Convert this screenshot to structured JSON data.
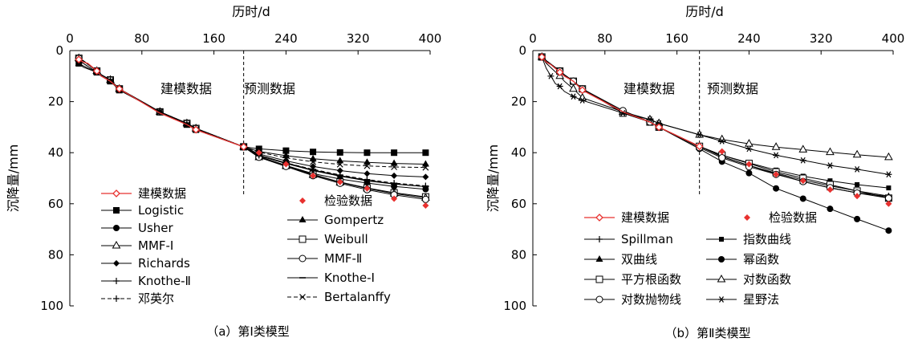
{
  "chart_data": [
    {
      "type": "line",
      "caption": "（a）第Ⅰ类模型",
      "xlabel": "历时/d",
      "ylabel": "沉降量/mm",
      "xticks": [
        0,
        80,
        160,
        240,
        320,
        400
      ],
      "yticks": [
        0,
        20,
        40,
        60,
        80,
        100
      ],
      "xlim": [
        0,
        400
      ],
      "ylim": [
        0,
        100
      ],
      "y_inverted": true,
      "x_axis_position": "top",
      "split_x": 193,
      "region_labels": [
        "建模数据",
        "预测数据"
      ],
      "colors": {
        "model": "#e8312f",
        "check": "#e8312f",
        "line": "#000000"
      },
      "model_series": {
        "name": "建模数据",
        "x": [
          10,
          15,
          20,
          30,
          35,
          45,
          55,
          100,
          130,
          140,
          193
        ],
        "y": [
          3.5,
          4.5,
          5,
          8,
          10,
          12,
          15,
          24.5,
          29,
          31,
          37.7
        ]
      },
      "check_series": {
        "name": "检验数据",
        "x": [
          210,
          240,
          270,
          300,
          330,
          360,
          395
        ],
        "y": [
          40,
          44.5,
          49,
          51.5,
          54,
          58,
          60.7
        ]
      },
      "legend": [
        "建模数据",
        "检验数据",
        "Logistic",
        "Gompertz",
        "Usher",
        "Weibull",
        "MMF-Ⅰ",
        "MMF-Ⅱ",
        "Richards",
        "Knothe-Ⅰ",
        "Knothe-Ⅱ",
        "Bertalanffy",
        "邓英尔"
      ],
      "series": [
        {
          "name": "Logistic",
          "marker": "square-filled",
          "dash": "solid",
          "x": [
            10,
            15,
            30,
            35,
            45,
            55,
            100,
            130,
            140,
            193,
            210,
            240,
            270,
            300,
            330,
            360,
            395
          ],
          "y": [
            5,
            6.5,
            8.5,
            10,
            12,
            15.5,
            24,
            29,
            31,
            37.7,
            38.5,
            39.2,
            39.7,
            39.9,
            40,
            40,
            40
          ]
        },
        {
          "name": "Gompertz",
          "marker": "triangle-filled",
          "dash": "solid",
          "x": [
            10,
            15,
            30,
            35,
            45,
            55,
            100,
            130,
            140,
            193,
            210,
            240,
            270,
            300,
            330,
            360,
            395
          ],
          "y": [
            5,
            6,
            8.5,
            10,
            12,
            15,
            24,
            29,
            31,
            37.7,
            39.5,
            41.2,
            42.4,
            43.2,
            43.8,
            44.2,
            44.5
          ]
        },
        {
          "name": "Usher",
          "marker": "circle-filled",
          "dash": "solid",
          "x": [
            10,
            15,
            30,
            35,
            45,
            55,
            100,
            130,
            140,
            193,
            210,
            240,
            270,
            300,
            330,
            360,
            395
          ],
          "y": [
            3,
            4,
            8,
            9.5,
            11.5,
            15,
            24,
            28.5,
            30.5,
            37.7,
            41.5,
            45,
            48.2,
            50.3,
            51.9,
            53.2,
            54.3
          ]
        },
        {
          "name": "Weibull",
          "marker": "square-open",
          "dash": "solid",
          "x": [
            10,
            15,
            30,
            35,
            45,
            55,
            100,
            130,
            140,
            193,
            210,
            240,
            270,
            300,
            330,
            360,
            395
          ],
          "y": [
            3,
            4,
            8,
            9.5,
            11.5,
            15,
            24,
            28.5,
            30.5,
            37.7,
            41.5,
            45,
            48.5,
            51.5,
            53.8,
            55.7,
            57.3
          ]
        },
        {
          "name": "MMF-Ⅰ",
          "marker": "triangle-open",
          "dash": "solid",
          "x": [
            10,
            15,
            30,
            35,
            45,
            55,
            100,
            130,
            140,
            193,
            210,
            240,
            270,
            300,
            330,
            360,
            395
          ],
          "y": [
            3,
            4,
            8,
            9.5,
            11.5,
            15,
            24,
            28.5,
            30.5,
            37.7,
            41.8,
            45.2,
            48.7,
            51.6,
            54,
            56,
            57.7
          ]
        },
        {
          "name": "MMF-Ⅱ",
          "marker": "circle-open",
          "dash": "solid",
          "x": [
            10,
            15,
            30,
            35,
            45,
            55,
            100,
            130,
            140,
            193,
            210,
            240,
            270,
            300,
            330,
            360,
            395
          ],
          "y": [
            3,
            4,
            8,
            9.5,
            11.5,
            15,
            24,
            28.5,
            30.5,
            37.7,
            41.8,
            45.4,
            49,
            52,
            54.5,
            56.5,
            58.3
          ]
        },
        {
          "name": "Richards",
          "marker": "diamond-filled",
          "dash": "solid",
          "x": [
            10,
            15,
            30,
            35,
            45,
            55,
            100,
            130,
            140,
            193,
            210,
            240,
            270,
            300,
            330,
            360,
            395
          ],
          "y": [
            4,
            5,
            8.5,
            10,
            12,
            15,
            24,
            29,
            31,
            37.7,
            40.5,
            43.2,
            45.4,
            47,
            48.2,
            49,
            49.5
          ]
        },
        {
          "name": "Knothe-Ⅰ",
          "marker": "dash",
          "dash": "solid",
          "x": [
            10,
            15,
            30,
            35,
            45,
            55,
            100,
            130,
            140,
            193,
            210,
            240,
            270,
            300,
            330,
            360,
            395
          ],
          "y": [
            3,
            4,
            8,
            9.5,
            11.5,
            15,
            24,
            28.5,
            30.5,
            37.7,
            41.2,
            44.2,
            47,
            49.2,
            51,
            52.3,
            53.3
          ]
        },
        {
          "name": "Knothe-Ⅱ",
          "marker": "plus",
          "dash": "solid",
          "x": [
            10,
            15,
            30,
            35,
            45,
            55,
            100,
            130,
            140,
            193,
            210,
            240,
            270,
            300,
            330,
            360,
            395
          ],
          "y": [
            3,
            4,
            8,
            9.5,
            11.5,
            15,
            24,
            28.5,
            30.5,
            37.7,
            41,
            44,
            46.8,
            49,
            50.8,
            52.2,
            53.3
          ]
        },
        {
          "name": "Bertalanffy",
          "marker": "x",
          "dash": "dashed",
          "x": [
            10,
            15,
            30,
            35,
            45,
            55,
            100,
            130,
            140,
            193,
            210,
            240,
            270,
            300,
            330,
            360,
            395
          ],
          "y": [
            4,
            5,
            8.5,
            10,
            12,
            15,
            24,
            29,
            31,
            37.7,
            39.8,
            42,
            43.6,
            44.6,
            45.2,
            45.6,
            45.8
          ]
        },
        {
          "name": "邓英尔",
          "marker": "plus",
          "dash": "dashed",
          "x": [
            10,
            15,
            30,
            35,
            45,
            55,
            100,
            130,
            140,
            193,
            210,
            240,
            270,
            300,
            330,
            360,
            395
          ],
          "y": [
            3,
            4,
            8,
            9.5,
            11.5,
            15,
            24,
            28.5,
            30.5,
            37.7,
            41,
            44,
            46.5,
            48.7,
            50.5,
            51.9,
            53
          ]
        }
      ]
    },
    {
      "type": "line",
      "caption": "（b）第Ⅱ类模型",
      "xlabel": "历时/d",
      "ylabel": "沉降量/mm",
      "xticks": [
        0,
        80,
        160,
        240,
        320,
        400
      ],
      "yticks": [
        0,
        20,
        40,
        60,
        80,
        100
      ],
      "xlim": [
        0,
        400
      ],
      "ylim": [
        0,
        100
      ],
      "y_inverted": true,
      "x_axis_position": "top",
      "split_x": 185,
      "region_labels": [
        "建模数据",
        "预测数据"
      ],
      "colors": {
        "model": "#e8312f",
        "check": "#e8312f",
        "line": "#000000"
      },
      "model_series": {
        "name": "建模数据",
        "x": [
          10,
          15,
          20,
          30,
          35,
          45,
          55,
          100,
          130,
          140,
          185
        ],
        "y": [
          2.5,
          4.5,
          5.5,
          8.5,
          10,
          12,
          15.5,
          24,
          28,
          30,
          37.5
        ]
      },
      "check_series": {
        "name": "检验数据",
        "x": [
          210,
          240,
          270,
          300,
          330,
          360,
          395
        ],
        "y": [
          39.5,
          44.5,
          48.5,
          51,
          54.5,
          57,
          60
        ]
      },
      "legend": [
        "建模数据",
        "检验数据",
        "Spillman",
        "指数曲线",
        "双曲线",
        "幂函数",
        "平方根函数",
        "对数函数",
        "对数抛物线",
        "星野法"
      ],
      "series": [
        {
          "name": "Spillman",
          "marker": "plus",
          "dash": "solid",
          "x": [
            10,
            15,
            30,
            35,
            45,
            55,
            100,
            130,
            140,
            185,
            210,
            240,
            270,
            300,
            330,
            360,
            395
          ],
          "y": [
            2.5,
            4,
            8,
            9.5,
            12,
            15,
            24,
            28,
            30,
            37.5,
            41.5,
            45,
            48,
            50.7,
            53,
            55,
            57
          ]
        },
        {
          "name": "指数曲线",
          "marker": "square-filled-small",
          "dash": "solid",
          "x": [
            10,
            15,
            30,
            35,
            45,
            55,
            100,
            130,
            140,
            185,
            210,
            240,
            270,
            300,
            330,
            360,
            395
          ],
          "y": [
            2.5,
            4,
            8,
            9.5,
            12,
            15,
            24,
            28,
            30,
            37.5,
            41,
            44,
            46.8,
            49.2,
            51,
            52.5,
            53.8
          ]
        },
        {
          "name": "双曲线",
          "marker": "triangle-filled",
          "dash": "solid",
          "x": [
            10,
            15,
            30,
            35,
            45,
            55,
            100,
            130,
            140,
            185,
            210,
            240,
            270,
            300,
            330,
            360,
            395
          ],
          "y": [
            2.5,
            4,
            8,
            9.5,
            12,
            15,
            24,
            28,
            30,
            37.5,
            41.5,
            45,
            48.3,
            51.3,
            53.8,
            55.7,
            57.2
          ]
        },
        {
          "name": "幂函数",
          "marker": "circle-filled",
          "dash": "solid",
          "x": [
            10,
            15,
            30,
            35,
            45,
            55,
            100,
            130,
            140,
            185,
            210,
            240,
            270,
            300,
            330,
            360,
            395
          ],
          "y": [
            2.5,
            4,
            8,
            9.5,
            12,
            15,
            24,
            28,
            30,
            38.5,
            43.5,
            48,
            54,
            58,
            62,
            66,
            70.5
          ]
        },
        {
          "name": "平方根函数",
          "marker": "square-open",
          "dash": "solid",
          "x": [
            10,
            15,
            30,
            35,
            45,
            55,
            100,
            130,
            140,
            185,
            210,
            240,
            270,
            300,
            330,
            360,
            395
          ],
          "y": [
            2.5,
            4,
            8,
            9.5,
            12,
            15,
            24.5,
            28,
            30,
            37.5,
            41,
            44.2,
            47.5,
            50,
            52.5,
            55,
            57.8
          ]
        },
        {
          "name": "对数函数",
          "marker": "triangle-open",
          "dash": "solid",
          "x": [
            10,
            15,
            30,
            35,
            45,
            55,
            100,
            130,
            140,
            185,
            210,
            240,
            270,
            300,
            330,
            360,
            395
          ],
          "y": [
            2.5,
            5,
            10,
            12,
            15,
            18.5,
            24,
            27,
            28.5,
            33,
            34.8,
            36.5,
            37.8,
            38.8,
            39.8,
            40.8,
            41.8
          ]
        },
        {
          "name": "对数抛物线",
          "marker": "circle-open",
          "dash": "solid",
          "x": [
            10,
            15,
            30,
            35,
            45,
            55,
            100,
            130,
            140,
            185,
            210,
            240,
            270,
            300,
            330,
            360,
            395
          ],
          "y": [
            2.5,
            4,
            8,
            9.5,
            12,
            15,
            23.5,
            28,
            30,
            38,
            42,
            45.5,
            48.5,
            51.3,
            53.7,
            55.8,
            57.8
          ]
        },
        {
          "name": "星野法",
          "marker": "asterisk",
          "dash": "solid",
          "x": [
            10,
            15,
            20,
            25,
            30,
            35,
            45,
            55,
            100,
            130,
            140,
            185,
            210,
            240,
            270,
            300,
            330,
            360,
            395
          ],
          "y": [
            2.5,
            7,
            10,
            13,
            14,
            16,
            18,
            19.5,
            24.5,
            27,
            28.5,
            33,
            35.5,
            38.5,
            41,
            43,
            45,
            46.5,
            48.5
          ]
        }
      ]
    }
  ]
}
